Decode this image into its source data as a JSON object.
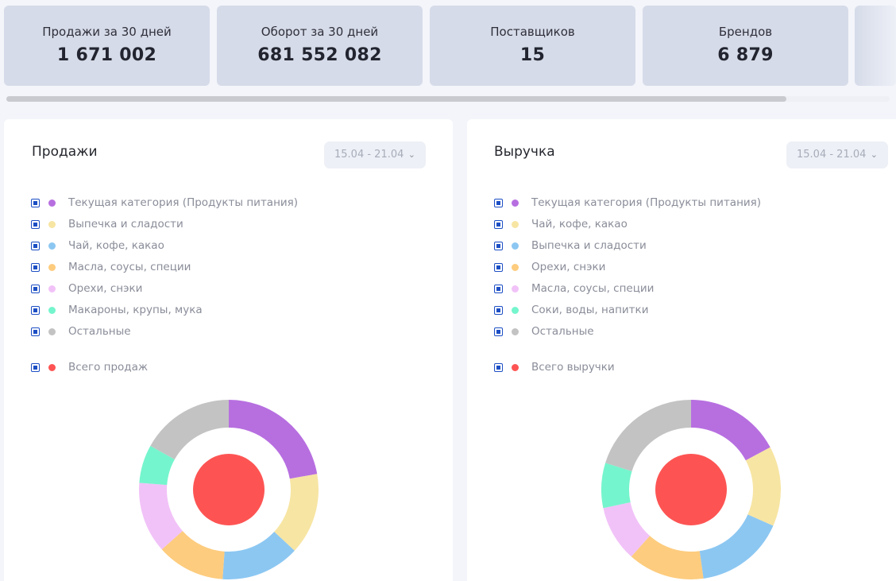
{
  "stats": [
    {
      "label": "Продажи за 30 дней",
      "value": "1 671 002"
    },
    {
      "label": "Оборот за 30 дней",
      "value": "681 552 082"
    },
    {
      "label": "Поставщиков",
      "value": "15"
    },
    {
      "label": "Брендов",
      "value": "6 879"
    }
  ],
  "colors": {
    "purple": "#b76fe0",
    "yellow": "#f7e5a3",
    "blue": "#8cc7f2",
    "orange": "#fdcc7e",
    "pink": "#f1c2f8",
    "mint": "#75f5cd",
    "gray": "#c3c3c3",
    "red": "#fd5453",
    "checkbox": "#1d4fc4"
  },
  "panels": [
    {
      "title": "Продажи",
      "period": "15.04 - 21.04",
      "legend": [
        {
          "label": "Текущая категория (Продукты питания)",
          "color": "#b76fe0"
        },
        {
          "label": "Выпечка и сладости",
          "color": "#f7e5a3"
        },
        {
          "label": "Чай, кофе, какао",
          "color": "#8cc7f2"
        },
        {
          "label": "Масла, соусы, специи",
          "color": "#fdcc7e"
        },
        {
          "label": "Орехи, снэки",
          "color": "#f1c2f8"
        },
        {
          "label": "Макароны, крупы, мука",
          "color": "#75f5cd"
        },
        {
          "label": "Остальные",
          "color": "#c3c3c3"
        }
      ],
      "total": {
        "label": "Всего продаж",
        "color": "#fd5453"
      }
    },
    {
      "title": "Выручка",
      "period": "15.04 - 21.04",
      "legend": [
        {
          "label": "Текущая категория (Продукты питания)",
          "color": "#b76fe0"
        },
        {
          "label": "Чай, кофе, какао",
          "color": "#f7e5a3"
        },
        {
          "label": "Выпечка и сладости",
          "color": "#8cc7f2"
        },
        {
          "label": "Орехи, снэки",
          "color": "#fdcc7e"
        },
        {
          "label": "Масла, соусы, специи",
          "color": "#f1c2f8"
        },
        {
          "label": "Соки, воды, напитки",
          "color": "#75f5cd"
        },
        {
          "label": "Остальные",
          "color": "#c3c3c3"
        }
      ],
      "total": {
        "label": "Всего выручки",
        "color": "#fd5453"
      }
    }
  ],
  "chart_data": [
    {
      "type": "pie",
      "variant": "donut",
      "title": "Продажи",
      "categories": [
        "Текущая категория (Продукты питания)",
        "Выпечка и сладости",
        "Чай, кофе, какао",
        "Масла, соусы, специи",
        "Орехи, снэки",
        "Макароны, крупы, мука",
        "Остальные"
      ],
      "values": [
        22.2,
        14.7,
        14.2,
        12.3,
        12.8,
        6.9,
        16.9
      ],
      "colors": [
        "#b76fe0",
        "#f7e5a3",
        "#8cc7f2",
        "#fdcc7e",
        "#f1c2f8",
        "#75f5cd",
        "#c3c3c3"
      ],
      "center": {
        "label": "Всего продаж",
        "color": "#fd5453"
      }
    },
    {
      "type": "pie",
      "variant": "donut",
      "title": "Выручка",
      "categories": [
        "Текущая категория (Продукты питания)",
        "Чай, кофе, какао",
        "Выпечка и сладости",
        "Орехи, снэки",
        "Масла, соусы, специи",
        "Соки, воды, напитки",
        "Остальные"
      ],
      "values": [
        17.2,
        14.4,
        16.2,
        13.8,
        10.1,
        8.1,
        20.2
      ],
      "colors": [
        "#b76fe0",
        "#f7e5a3",
        "#8cc7f2",
        "#fdcc7e",
        "#f1c2f8",
        "#75f5cd",
        "#c3c3c3"
      ],
      "center": {
        "label": "Всего выручки",
        "color": "#fd5453"
      }
    }
  ]
}
